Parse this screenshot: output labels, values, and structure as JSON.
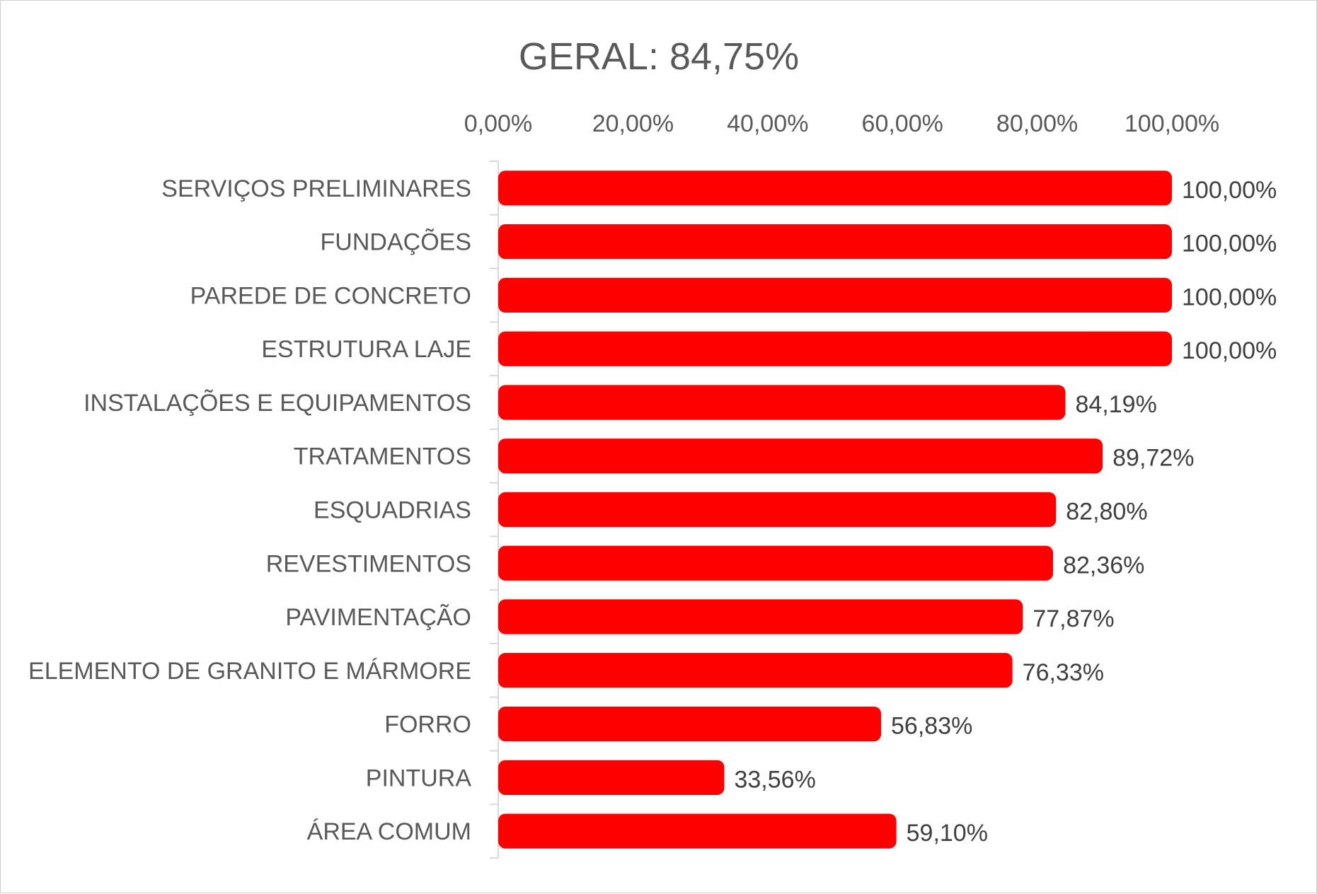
{
  "chart_data": {
    "type": "bar",
    "orientation": "horizontal",
    "title": "GERAL: 84,75%",
    "xlabel": "",
    "ylabel": "",
    "xlim": [
      0,
      100
    ],
    "x_axis_position": "top",
    "grid": false,
    "legend": "none",
    "bar_color": "#FF0000",
    "x_ticks": [
      0,
      20,
      40,
      60,
      80,
      100
    ],
    "x_tick_labels": [
      "0,00%",
      "20,00%",
      "40,00%",
      "60,00%",
      "80,00%",
      "100,00%"
    ],
    "categories": [
      "SERVIÇOS PRELIMINARES",
      "FUNDAÇÕES",
      "PAREDE DE CONCRETO",
      "ESTRUTURA LAJE",
      "INSTALAÇÕES E EQUIPAMENTOS",
      "TRATAMENTOS",
      "ESQUADRIAS",
      "REVESTIMENTOS",
      "PAVIMENTAÇÃO",
      "ELEMENTO DE GRANITO E MÁRMORE",
      "FORRO",
      "PINTURA",
      "ÁREA COMUM"
    ],
    "values": [
      100.0,
      100.0,
      100.0,
      100.0,
      84.19,
      89.72,
      82.8,
      82.36,
      77.87,
      76.33,
      56.83,
      33.56,
      59.1
    ],
    "data_labels": [
      "100,00%",
      "100,00%",
      "100,00%",
      "100,00%",
      "84,19%",
      "89,72%",
      "82,80%",
      "82,36%",
      "77,87%",
      "76,33%",
      "56,83%",
      "33,56%",
      "59,10%"
    ]
  }
}
